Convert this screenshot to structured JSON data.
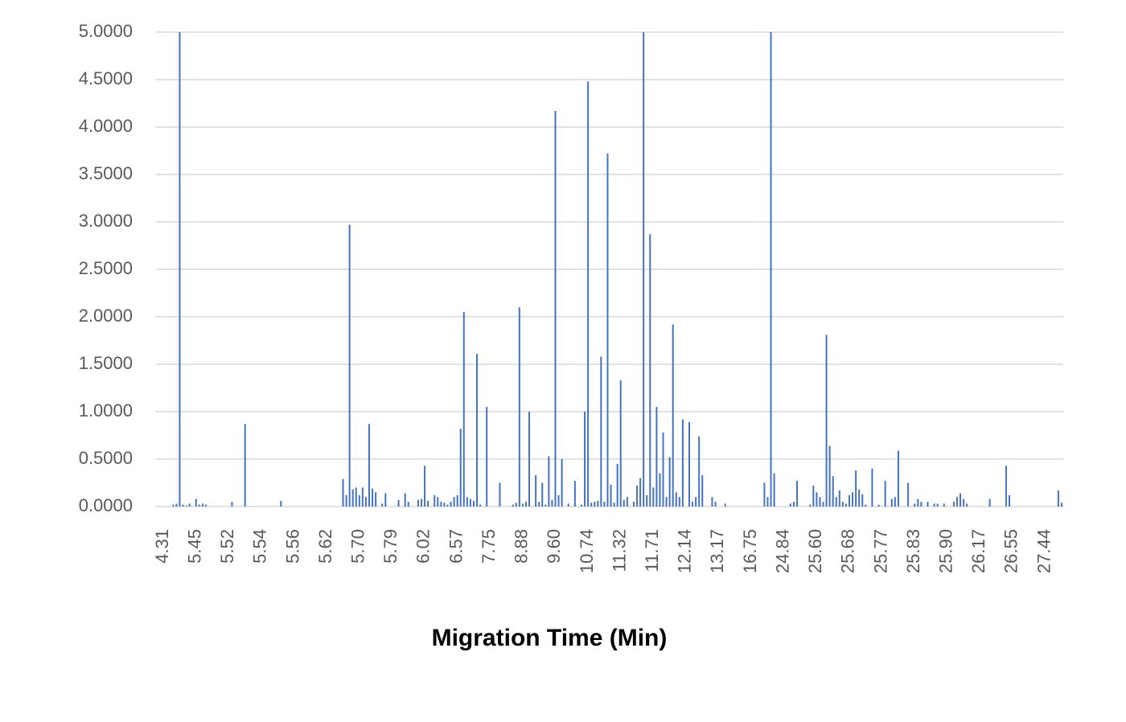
{
  "chart_data": {
    "type": "bar",
    "x_label": "Migration Time (Min)",
    "color": "#4472c4",
    "grid": true,
    "ylim": [
      0,
      5
    ],
    "yticks": [
      {
        "value": 0,
        "label": "0.0000"
      },
      {
        "value": 0.5,
        "label": "0.5000"
      },
      {
        "value": 1,
        "label": "1.0000"
      },
      {
        "value": 1.5,
        "label": "1.5000"
      },
      {
        "value": 2,
        "label": "2.0000"
      },
      {
        "value": 2.5,
        "label": "2.5000"
      },
      {
        "value": 3,
        "label": "3.0000"
      },
      {
        "value": 3.5,
        "label": "3.5000"
      },
      {
        "value": 4,
        "label": "4.0000"
      },
      {
        "value": 4.5,
        "label": "4.5000"
      },
      {
        "value": 5,
        "label": "5.0000"
      }
    ],
    "categories": [
      "4.31",
      null,
      null,
      null,
      null,
      null,
      null,
      null,
      null,
      null,
      "5.45",
      null,
      null,
      null,
      null,
      null,
      null,
      null,
      null,
      null,
      "5.52",
      null,
      null,
      null,
      null,
      null,
      null,
      null,
      null,
      null,
      "5.54",
      null,
      null,
      null,
      null,
      null,
      null,
      null,
      null,
      null,
      "5.56",
      null,
      null,
      null,
      null,
      null,
      null,
      null,
      null,
      null,
      "5.62",
      null,
      null,
      null,
      null,
      null,
      null,
      null,
      null,
      null,
      "5.70",
      null,
      null,
      null,
      null,
      null,
      null,
      null,
      null,
      null,
      "5.79",
      null,
      null,
      null,
      null,
      null,
      null,
      null,
      null,
      null,
      "6.02",
      null,
      null,
      null,
      null,
      null,
      null,
      null,
      null,
      null,
      "6.57",
      null,
      null,
      null,
      null,
      null,
      null,
      null,
      null,
      null,
      "7.75",
      null,
      null,
      null,
      null,
      null,
      null,
      null,
      null,
      null,
      "8.88",
      null,
      null,
      null,
      null,
      null,
      null,
      null,
      null,
      null,
      "9.60",
      null,
      null,
      null,
      null,
      null,
      null,
      null,
      null,
      null,
      "10.74",
      null,
      null,
      null,
      null,
      null,
      null,
      null,
      null,
      null,
      "11.32",
      null,
      null,
      null,
      null,
      null,
      null,
      null,
      null,
      null,
      "11.71",
      null,
      null,
      null,
      null,
      null,
      null,
      null,
      null,
      null,
      "12.14",
      null,
      null,
      null,
      null,
      null,
      null,
      null,
      null,
      null,
      "13.17",
      null,
      null,
      null,
      null,
      null,
      null,
      null,
      null,
      null,
      "16.75",
      null,
      null,
      null,
      null,
      null,
      null,
      null,
      null,
      null,
      "24.84",
      null,
      null,
      null,
      null,
      null,
      null,
      null,
      null,
      null,
      "25.60",
      null,
      null,
      null,
      null,
      null,
      null,
      null,
      null,
      null,
      "25.68",
      null,
      null,
      null,
      null,
      null,
      null,
      null,
      null,
      null,
      "25.77",
      null,
      null,
      null,
      null,
      null,
      null,
      null,
      null,
      null,
      "25.83",
      null,
      null,
      null,
      null,
      null,
      null,
      null,
      null,
      null,
      "25.90",
      null,
      null,
      null,
      null,
      null,
      null,
      null,
      null,
      null,
      "26.17",
      null,
      null,
      null,
      null,
      null,
      null,
      null,
      null,
      null,
      "26.55",
      null,
      null,
      null,
      null,
      null,
      null,
      null,
      null,
      null,
      "27.44",
      null,
      null,
      null,
      null,
      null,
      null,
      null
    ],
    "values": [
      0,
      0,
      0,
      0,
      0,
      0.02,
      0.03,
      5.0,
      0.02,
      0.01,
      0.03,
      0,
      0.08,
      0.02,
      0.03,
      0.02,
      0,
      0,
      0,
      0,
      0,
      0,
      0,
      0.05,
      0,
      0,
      0,
      0.87,
      0,
      0,
      0,
      0,
      0,
      0,
      0,
      0,
      0,
      0,
      0.06,
      0,
      0,
      0,
      0,
      0,
      0,
      0,
      0,
      0,
      0,
      0,
      0,
      0,
      0,
      0,
      0,
      0,
      0,
      0.29,
      0.12,
      2.97,
      0.18,
      0.2,
      0.12,
      0.2,
      0.1,
      0.87,
      0.19,
      0.15,
      0,
      0.03,
      0.14,
      0,
      0,
      0,
      0.07,
      0,
      0.14,
      0.05,
      0,
      0,
      0.07,
      0.08,
      0.43,
      0.06,
      0,
      0.12,
      0.1,
      0.05,
      0.04,
      0.02,
      0.05,
      0.1,
      0.12,
      0.82,
      2.05,
      0.1,
      0.08,
      0.06,
      1.61,
      0.02,
      0,
      1.05,
      0,
      0,
      0,
      0.25,
      0,
      0,
      0,
      0.02,
      0.04,
      2.1,
      0.03,
      0.05,
      1.0,
      0,
      0.33,
      0.05,
      0.25,
      0.02,
      0.53,
      0.07,
      4.17,
      0.12,
      0.5,
      0,
      0.03,
      0,
      0.27,
      0,
      0.02,
      1.0,
      4.48,
      0.04,
      0.05,
      0.06,
      1.58,
      0.05,
      3.72,
      0.23,
      0.04,
      0.45,
      1.33,
      0.07,
      0.1,
      0,
      0.05,
      0.22,
      0.3,
      5.0,
      0.12,
      2.87,
      0.2,
      1.05,
      0.35,
      0.78,
      0.1,
      0.52,
      1.92,
      0.15,
      0.1,
      0.92,
      0,
      0.89,
      0.05,
      0.1,
      0.74,
      0.33,
      0,
      0,
      0.1,
      0.05,
      0,
      0,
      0.03,
      0,
      0,
      0,
      0,
      0,
      0,
      0,
      0,
      0,
      0,
      0,
      0.25,
      0.1,
      5.0,
      0.35,
      0,
      0,
      0,
      0,
      0.03,
      0.05,
      0.27,
      0,
      0,
      0,
      0.02,
      0.22,
      0.15,
      0.1,
      0.05,
      1.81,
      0.64,
      0.32,
      0.1,
      0.17,
      0.05,
      0.03,
      0.12,
      0.15,
      0.38,
      0.18,
      0.13,
      0.02,
      0,
      0.4,
      0,
      0.02,
      0,
      0.27,
      0,
      0.08,
      0.1,
      0.59,
      0,
      0,
      0.25,
      0,
      0.03,
      0.08,
      0.05,
      0,
      0.05,
      0,
      0.03,
      0.03,
      0,
      0.03,
      0,
      0,
      0.05,
      0.1,
      0.14,
      0.08,
      0.03,
      0,
      0,
      0,
      0,
      0,
      0,
      0.08,
      0,
      0,
      0,
      0,
      0.43,
      0.12,
      0,
      0,
      0,
      0,
      0,
      0,
      0,
      0,
      0,
      0,
      0,
      0,
      0,
      0,
      0.17,
      0.04
    ]
  }
}
